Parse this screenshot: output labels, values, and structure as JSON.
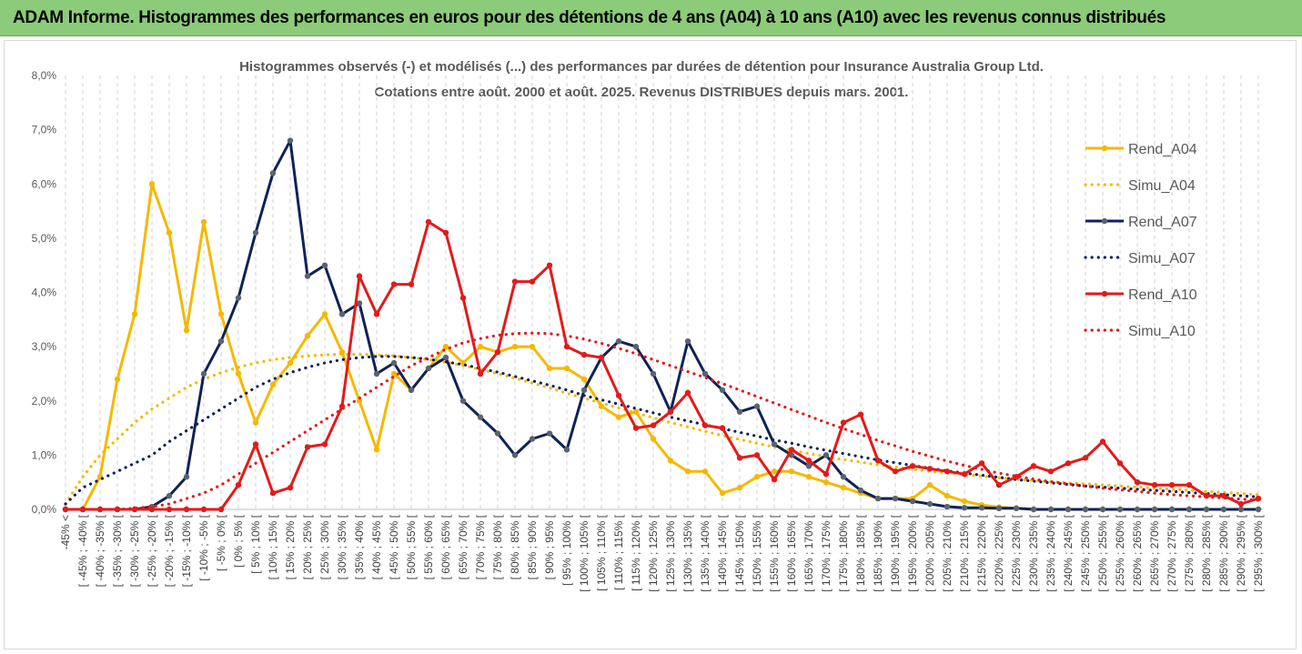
{
  "banner": {
    "title": "ADAM Informe. Histogrammes des performances en euros pour des détentions de 4 ans (A04) à 10 ans (A10) avec les revenus connus distribués"
  },
  "chart_data": {
    "type": "line",
    "title_line1": "Histogrammes observés (-) et modélisés (...) des performances par durées de détention pour Insurance Australia Group Ltd.",
    "title_line2": "Cotations entre août. 2000 et août. 2025. Revenus DISTRIBUES depuis mars. 2001.",
    "ylim": [
      0,
      8
    ],
    "yticks": [
      "0,0%",
      "1,0%",
      "2,0%",
      "3,0%",
      "4,0%",
      "5,0%",
      "6,0%",
      "7,0%",
      "8,0%"
    ],
    "grid": "vertical dashed",
    "legend_position": "right",
    "categories": [
      "-45% <",
      "[ -45% ; -40% [",
      "[ -40% ; -35% [",
      "[ -35% ; -30% [",
      "[ -30% ; -25% [",
      "[ -25% ; -20% [",
      "[ -20% ; -15% [",
      "[ -15% ; -10% [",
      "[ -10% ; -5% [",
      "[ -5% ; 0% [",
      "[ 0% ; 5% [",
      "[ 5% ; 10% [",
      "[ 10% ; 15% [",
      "[ 15% ; 20% [",
      "[ 20% ; 25% [",
      "[ 25% ; 30% [",
      "[ 30% ; 35% [",
      "[ 35% ; 40% [",
      "[ 40% ; 45% [",
      "[ 45% ; 50% [",
      "[ 50% ; 55% [",
      "[ 55% ; 60% [",
      "[ 60% ; 65% [",
      "[ 65% ; 70% [",
      "[ 70% ; 75% [",
      "[ 75% ; 80% [",
      "[ 80% ; 85% [",
      "[ 85% ; 90% [",
      "[ 90% ; 95% [",
      "[ 95% ; 100% [",
      "[ 100% ; 105% [",
      "[ 105% ; 110% [",
      "[ 110% ; 115% [",
      "[ 115% ; 120% [",
      "[ 120% ; 125% [",
      "[ 125% ; 130% [",
      "[ 130% ; 135% [",
      "[ 135% ; 140% [",
      "[ 140% ; 145% [",
      "[ 145% ; 150% [",
      "[ 150% ; 155% [",
      "[ 155% ; 160% [",
      "[ 160% ; 165% [",
      "[ 165% ; 170% [",
      "[ 170% ; 175% [",
      "[ 175% ; 180% [",
      "[ 180% ; 185% [",
      "[ 185% ; 190% [",
      "[ 190% ; 195% [",
      "[ 195% ; 200% [",
      "[ 200% ; 205% [",
      "[ 205% ; 210% [",
      "[ 210% ; 215% [",
      "[ 215% ; 220% [",
      "[ 220% ; 225% [",
      "[ 225% ; 230% [",
      "[ 230% ; 235% [",
      "[ 235% ; 240% [",
      "[ 240% ; 245% [",
      "[ 245% ; 250% [",
      "[ 250% ; 255% [",
      "[ 255% ; 260% [",
      "[ 260% ; 265% [",
      "[ 265% ; 270% [",
      "[ 270% ; 275% [",
      "[ 275% ; 280% [",
      "[ 280% ; 285% [",
      "[ 285% ; 290% [",
      "[ 290% ; 295% [",
      "[ 295% ; 300% ["
    ],
    "series": [
      {
        "name": "Rend_A04",
        "style": "solid-marker",
        "color": "#f5b800",
        "values": [
          0.0,
          0.0,
          0.6,
          2.4,
          3.6,
          6.0,
          5.1,
          3.3,
          5.3,
          3.6,
          2.5,
          1.6,
          2.3,
          2.7,
          3.2,
          3.6,
          2.9,
          2.0,
          1.1,
          2.5,
          2.2,
          2.6,
          3.0,
          2.7,
          3.0,
          2.9,
          3.0,
          3.0,
          2.6,
          2.6,
          2.4,
          1.9,
          1.7,
          1.8,
          1.3,
          0.9,
          0.7,
          0.7,
          0.3,
          0.4,
          0.6,
          0.7,
          0.7,
          0.6,
          0.5,
          0.4,
          0.3,
          0.2,
          0.2,
          0.2,
          0.45,
          0.25,
          0.15,
          0.08,
          0.04,
          0.02,
          0,
          0,
          0,
          0,
          0,
          0,
          0,
          0,
          0,
          0,
          0,
          0,
          0,
          0
        ]
      },
      {
        "name": "Simu_A04",
        "style": "dotted",
        "color": "#f5b800",
        "values": [
          0.1,
          0.6,
          1.0,
          1.3,
          1.6,
          1.85,
          2.05,
          2.25,
          2.4,
          2.52,
          2.62,
          2.7,
          2.76,
          2.8,
          2.83,
          2.85,
          2.86,
          2.86,
          2.85,
          2.83,
          2.8,
          2.76,
          2.71,
          2.65,
          2.58,
          2.5,
          2.42,
          2.33,
          2.24,
          2.14,
          2.05,
          1.96,
          1.87,
          1.78,
          1.69,
          1.6,
          1.52,
          1.44,
          1.36,
          1.29,
          1.22,
          1.15,
          1.09,
          1.03,
          0.97,
          0.92,
          0.87,
          0.82,
          0.78,
          0.74,
          0.7,
          0.67,
          0.64,
          0.61,
          0.58,
          0.56,
          0.53,
          0.51,
          0.49,
          0.47,
          0.45,
          0.43,
          0.41,
          0.39,
          0.37,
          0.35,
          0.33,
          0.31,
          0.29,
          0.27
        ]
      },
      {
        "name": "Rend_A07",
        "style": "solid-marker",
        "color": "#0d2257",
        "values": [
          0,
          0,
          0,
          0,
          0,
          0.05,
          0.25,
          0.6,
          2.5,
          3.1,
          3.9,
          5.1,
          6.2,
          6.8,
          4.3,
          4.5,
          3.6,
          3.8,
          2.5,
          2.7,
          2.2,
          2.6,
          2.8,
          2.0,
          1.7,
          1.4,
          1.0,
          1.3,
          1.4,
          1.1,
          2.2,
          2.8,
          3.1,
          3.0,
          2.5,
          1.8,
          3.1,
          2.5,
          2.2,
          1.8,
          1.9,
          1.2,
          1.0,
          0.8,
          1.0,
          0.6,
          0.35,
          0.2,
          0.2,
          0.15,
          0.1,
          0.05,
          0.03,
          0.03,
          0.02,
          0.02,
          0,
          0,
          0,
          0,
          0,
          0,
          0,
          0,
          0,
          0,
          0,
          0,
          0,
          0
        ]
      },
      {
        "name": "Simu_A07",
        "style": "dotted",
        "color": "#0d2257",
        "values": [
          0.1,
          0.4,
          0.55,
          0.7,
          0.85,
          1.0,
          1.25,
          1.45,
          1.65,
          1.85,
          2.05,
          2.25,
          2.4,
          2.52,
          2.62,
          2.7,
          2.76,
          2.8,
          2.82,
          2.82,
          2.8,
          2.77,
          2.72,
          2.67,
          2.6,
          2.53,
          2.45,
          2.37,
          2.29,
          2.2,
          2.1,
          2.02,
          1.94,
          1.86,
          1.78,
          1.7,
          1.63,
          1.56,
          1.49,
          1.42,
          1.35,
          1.28,
          1.22,
          1.15,
          1.09,
          1.03,
          0.97,
          0.91,
          0.86,
          0.81,
          0.76,
          0.71,
          0.67,
          0.63,
          0.59,
          0.55,
          0.52,
          0.49,
          0.46,
          0.43,
          0.41,
          0.39,
          0.37,
          0.35,
          0.33,
          0.31,
          0.29,
          0.27,
          0.25,
          0.23
        ]
      },
      {
        "name": "Rend_A10",
        "style": "solid-marker",
        "color": "#e31a1a",
        "values": [
          0,
          0,
          0,
          0,
          0,
          0,
          0,
          0,
          0,
          0,
          0.45,
          1.2,
          0.3,
          0.4,
          1.15,
          1.2,
          1.9,
          4.3,
          3.6,
          4.15,
          4.15,
          5.3,
          5.1,
          3.9,
          2.5,
          2.9,
          4.2,
          4.2,
          4.5,
          3.0,
          2.85,
          2.8,
          2.1,
          1.5,
          1.55,
          1.8,
          2.15,
          1.55,
          1.5,
          0.95,
          1.0,
          0.55,
          1.1,
          0.9,
          0.65,
          1.6,
          1.75,
          0.9,
          0.7,
          0.8,
          0.75,
          0.7,
          0.65,
          0.85,
          0.45,
          0.6,
          0.8,
          0.7,
          0.85,
          0.95,
          1.25,
          0.85,
          0.5,
          0.45,
          0.45,
          0.45,
          0.25,
          0.25,
          0.1,
          0.2
        ]
      },
      {
        "name": "Simu_A10",
        "style": "dotted",
        "color": "#e31a1a",
        "values": [
          0,
          0,
          0,
          0,
          0.02,
          0.05,
          0.1,
          0.2,
          0.3,
          0.45,
          0.65,
          0.85,
          1.05,
          1.25,
          1.45,
          1.65,
          1.85,
          2.05,
          2.25,
          2.45,
          2.65,
          2.8,
          2.95,
          3.07,
          3.15,
          3.21,
          3.24,
          3.25,
          3.24,
          3.2,
          3.14,
          3.06,
          2.97,
          2.87,
          2.76,
          2.65,
          2.54,
          2.43,
          2.32,
          2.2,
          2.08,
          1.96,
          1.84,
          1.72,
          1.6,
          1.49,
          1.38,
          1.27,
          1.17,
          1.07,
          0.98,
          0.89,
          0.81,
          0.74,
          0.67,
          0.61,
          0.56,
          0.51,
          0.47,
          0.43,
          0.39,
          0.36,
          0.33,
          0.3,
          0.27,
          0.25,
          0.23,
          0.21,
          0.19,
          0.17
        ]
      }
    ]
  }
}
